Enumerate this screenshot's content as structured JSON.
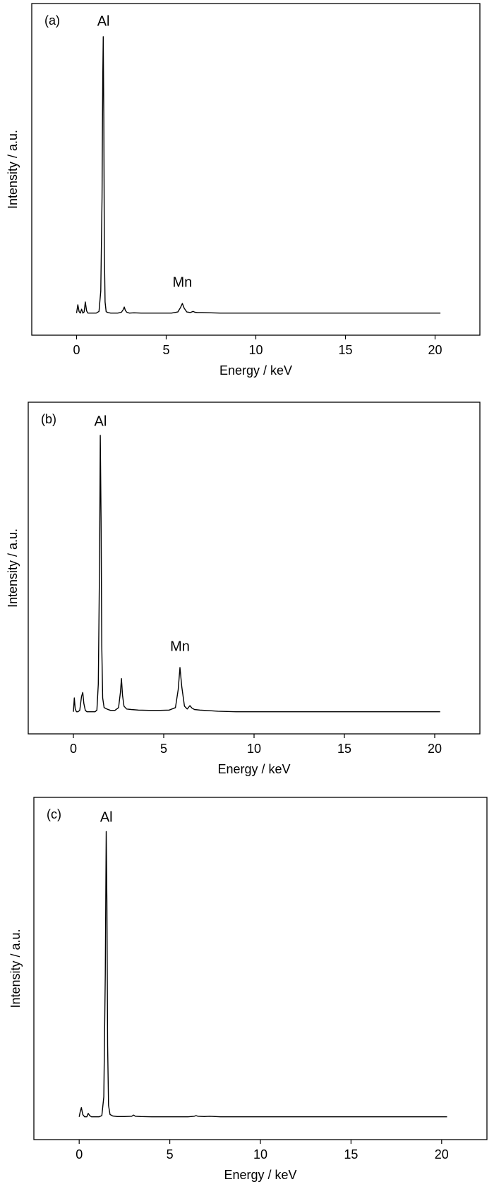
{
  "chart_data": [
    {
      "type": "line",
      "panel_label": "(a)",
      "xlabel": "Energy / keV",
      "ylabel": "Intensity / a.u.",
      "xlim": [
        -2.5,
        22.5
      ],
      "ylim": [
        -0.08,
        1.12
      ],
      "xticks": [
        0,
        5,
        10,
        15,
        20
      ],
      "y_tick_labels": false,
      "grid": false,
      "legend": "none",
      "line_color": "#000000",
      "annotations": [
        {
          "text": "Al",
          "x": 1.5,
          "y": 1.04
        },
        {
          "text": "Mn",
          "x": 5.9,
          "y": 0.095
        }
      ],
      "series": [
        {
          "x": [
            0.0,
            0.07,
            0.14,
            0.21,
            0.28,
            0.35,
            0.42,
            0.49,
            0.56,
            0.63,
            0.7,
            0.8,
            0.95,
            1.1,
            1.25,
            1.35,
            1.42,
            1.46,
            1.49,
            1.52,
            1.55,
            1.59,
            1.65,
            1.75,
            1.9,
            2.1,
            2.3,
            2.5,
            2.6,
            2.66,
            2.72,
            2.8,
            2.95,
            3.2,
            3.6,
            4.2,
            4.8,
            5.3,
            5.65,
            5.8,
            5.9,
            6.0,
            6.15,
            6.35,
            6.5,
            6.6,
            6.75,
            7.0,
            7.5,
            8.0,
            9.0,
            10.0,
            12.0,
            14.0,
            16.0,
            18.0,
            20.3
          ],
          "y": [
            0.0,
            0.03,
            0.005,
            0.0,
            0.014,
            0.0,
            0.004,
            0.04,
            0.008,
            0.0,
            0.0,
            0.0,
            0.0,
            0.0,
            0.006,
            0.08,
            0.42,
            0.85,
            1.0,
            0.7,
            0.22,
            0.04,
            0.005,
            0.002,
            0.0,
            0.0,
            0.0,
            0.003,
            0.012,
            0.022,
            0.01,
            0.003,
            0.0,
            0.001,
            0.0,
            0.0,
            0.0,
            0.0,
            0.004,
            0.02,
            0.035,
            0.018,
            0.004,
            0.002,
            0.006,
            0.003,
            0.002,
            0.002,
            0.001,
            0.0,
            0.0,
            0.0,
            0.0,
            0.0,
            0.0,
            0.0,
            0.0
          ]
        }
      ]
    },
    {
      "type": "line",
      "panel_label": "(b)",
      "xlabel": "Energy / keV",
      "ylabel": "Intensity / a.u.",
      "xlim": [
        -2.5,
        22.5
      ],
      "ylim": [
        -0.08,
        1.12
      ],
      "xticks": [
        0,
        5,
        10,
        15,
        20
      ],
      "y_tick_labels": false,
      "grid": false,
      "legend": "none",
      "line_color": "#000000",
      "annotations": [
        {
          "text": "Al",
          "x": 1.5,
          "y": 1.035
        },
        {
          "text": "Mn",
          "x": 5.9,
          "y": 0.22
        }
      ],
      "series": [
        {
          "x": [
            0.0,
            0.05,
            0.1,
            0.17,
            0.25,
            0.35,
            0.45,
            0.52,
            0.58,
            0.66,
            0.75,
            0.9,
            1.05,
            1.2,
            1.3,
            1.38,
            1.45,
            1.49,
            1.53,
            1.57,
            1.62,
            1.7,
            1.85,
            2.05,
            2.3,
            2.5,
            2.6,
            2.66,
            2.72,
            2.8,
            2.95,
            3.2,
            3.6,
            4.2,
            4.8,
            5.3,
            5.65,
            5.8,
            5.9,
            6.0,
            6.15,
            6.3,
            6.45,
            6.55,
            6.7,
            7.0,
            7.5,
            8.0,
            9.0,
            10.0,
            12.0,
            14.0,
            16.0,
            18.0,
            20.3
          ],
          "y": [
            0.0,
            0.05,
            0.01,
            0.0,
            0.0,
            0.005,
            0.055,
            0.07,
            0.03,
            0.005,
            0.0,
            0.0,
            0.0,
            0.0,
            0.006,
            0.1,
            0.55,
            1.0,
            0.7,
            0.24,
            0.05,
            0.015,
            0.01,
            0.005,
            0.005,
            0.015,
            0.07,
            0.12,
            0.06,
            0.02,
            0.01,
            0.008,
            0.006,
            0.005,
            0.005,
            0.006,
            0.015,
            0.08,
            0.16,
            0.09,
            0.02,
            0.01,
            0.022,
            0.014,
            0.008,
            0.006,
            0.004,
            0.002,
            0.0,
            0.0,
            0.0,
            0.0,
            0.0,
            0.0,
            0.0
          ]
        }
      ]
    },
    {
      "type": "line",
      "panel_label": "(c)",
      "xlabel": "Energy / keV",
      "ylabel": "Intensity / a.u.",
      "xlim": [
        -2.5,
        22.5
      ],
      "ylim": [
        -0.08,
        1.12
      ],
      "xticks": [
        0,
        5,
        10,
        15,
        20
      ],
      "y_tick_labels": false,
      "grid": false,
      "legend": "none",
      "line_color": "#000000",
      "annotations": [
        {
          "text": "Al",
          "x": 1.5,
          "y": 1.035
        }
      ],
      "series": [
        {
          "x": [
            0.0,
            0.06,
            0.12,
            0.2,
            0.3,
            0.42,
            0.5,
            0.58,
            0.68,
            0.8,
            0.95,
            1.1,
            1.25,
            1.36,
            1.44,
            1.49,
            1.53,
            1.57,
            1.62,
            1.7,
            1.85,
            2.1,
            2.5,
            2.9,
            3.0,
            3.1,
            3.4,
            4.0,
            5.0,
            6.0,
            6.35,
            6.45,
            6.55,
            6.9,
            7.2,
            7.5,
            7.8,
            8.2,
            9.0,
            10.0,
            12.0,
            14.0,
            16.0,
            18.0,
            20.3
          ],
          "y": [
            0.0,
            0.018,
            0.032,
            0.008,
            0.0,
            0.0,
            0.012,
            0.004,
            0.0,
            0.0,
            0.0,
            0.0,
            0.004,
            0.07,
            0.5,
            1.0,
            0.75,
            0.25,
            0.04,
            0.008,
            0.003,
            0.001,
            0.001,
            0.002,
            0.006,
            0.002,
            0.001,
            0.0,
            0.0,
            0.0,
            0.002,
            0.004,
            0.002,
            0.001,
            0.002,
            0.001,
            0.0,
            0.0,
            0.0,
            0.0,
            0.0,
            0.0,
            0.0,
            0.0,
            0.0
          ]
        }
      ]
    }
  ]
}
